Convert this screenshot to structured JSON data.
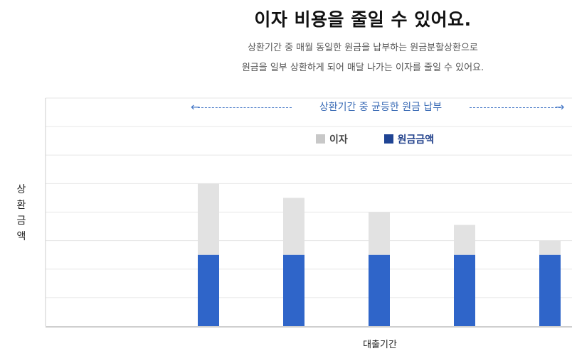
{
  "header": {
    "title": "이자 비용을 줄일 수 있어요.",
    "description_line1": "상환기간 중 매월 동일한 원금을 납부하는 원금분할상환으로",
    "description_line2": "원금을 일부 상환하게 되어 매달 나가는 이자를 줄일 수 있어요."
  },
  "chart_data": {
    "type": "bar",
    "stacked": true,
    "title": "",
    "ylabel": "상환금액",
    "xlabel": "대출기간",
    "ylim": [
      0,
      8
    ],
    "grid": true,
    "tick_labels_shown": false,
    "annotation": "상환기간 중 균등한 원금 납부",
    "legend_position": "top-center",
    "categories": [
      "1",
      "2",
      "3",
      "4",
      "5"
    ],
    "series": [
      {
        "name": "원금금액",
        "color": "#2f65c9",
        "values": [
          2.5,
          2.5,
          2.5,
          2.5,
          2.5
        ]
      },
      {
        "name": "이자",
        "color": "#e2e2e2",
        "values": [
          2.5,
          2.0,
          1.5,
          1.05,
          0.5
        ]
      }
    ]
  },
  "legend": {
    "interest_label": "이자",
    "principal_label": "원금금액",
    "interest_color": "#c8c8c8",
    "principal_color": "#1f4494"
  },
  "arrows": {
    "left": "←",
    "right": "→"
  }
}
